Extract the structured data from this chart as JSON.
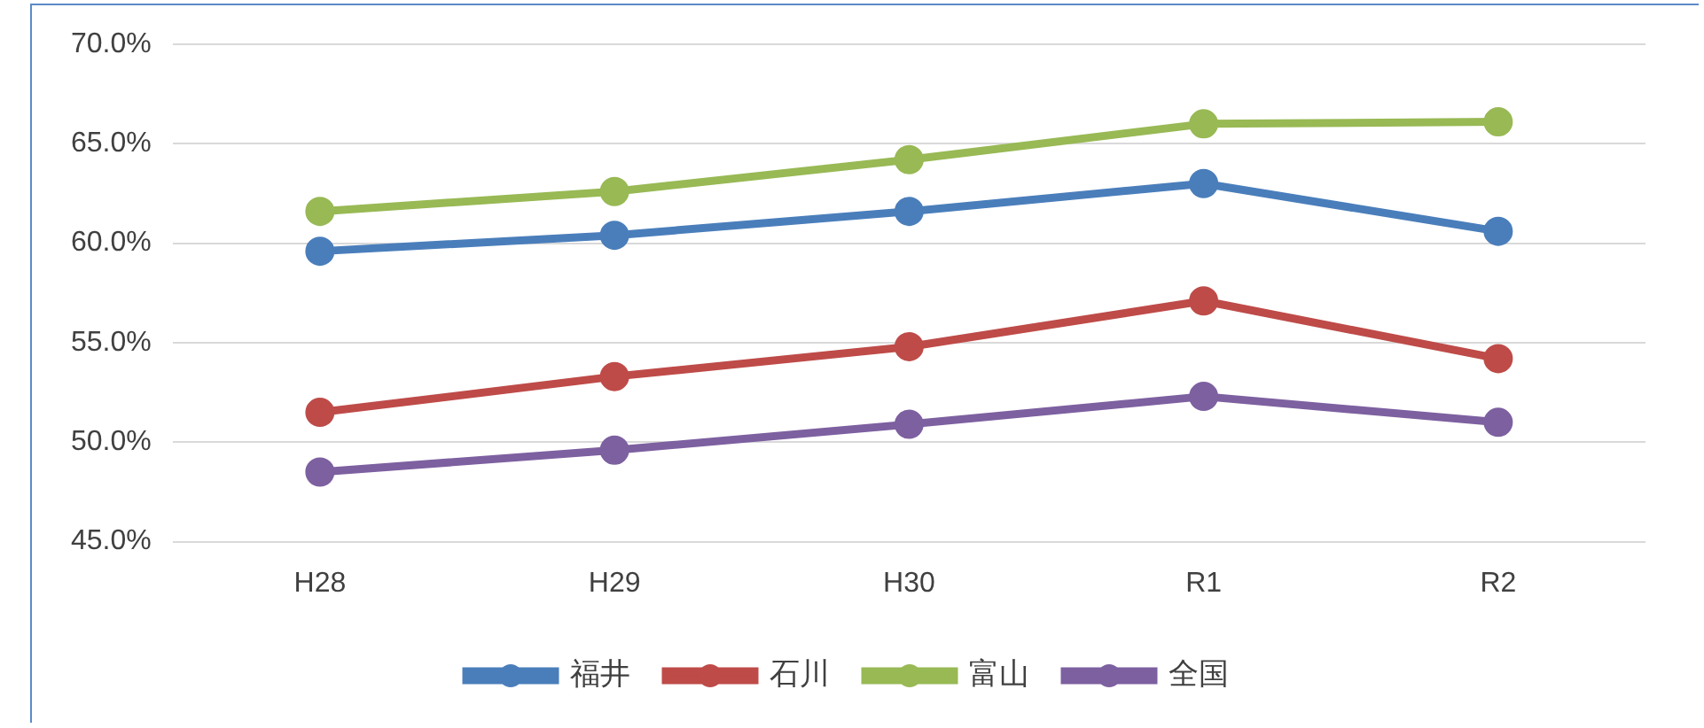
{
  "chart_data": {
    "type": "line",
    "categories": [
      "H28",
      "H29",
      "H30",
      "R1",
      "R2"
    ],
    "series": [
      {
        "name": "福井",
        "color": "#4a7ebb",
        "values": [
          59.6,
          60.4,
          61.6,
          63.0,
          60.6
        ]
      },
      {
        "name": "石川",
        "color": "#be4b48",
        "values": [
          51.5,
          53.3,
          54.8,
          57.1,
          54.2
        ]
      },
      {
        "name": "富山",
        "color": "#98b954",
        "values": [
          61.6,
          62.6,
          64.2,
          66.0,
          66.1
        ]
      },
      {
        "name": "全国",
        "color": "#7d60a0",
        "values": [
          48.5,
          49.6,
          50.9,
          52.3,
          51.0
        ]
      }
    ],
    "ylim": [
      45,
      70
    ],
    "yticks": [
      {
        "value": 45,
        "label": "45.0%"
      },
      {
        "value": 50,
        "label": "50.0%"
      },
      {
        "value": 55,
        "label": "55.0%"
      },
      {
        "value": 60,
        "label": "60.0%"
      },
      {
        "value": 65,
        "label": "65.0%"
      },
      {
        "value": 70,
        "label": "70.0%"
      }
    ],
    "grid": "y",
    "legend": "bottom",
    "marker": "circle",
    "line_style": "solid"
  }
}
